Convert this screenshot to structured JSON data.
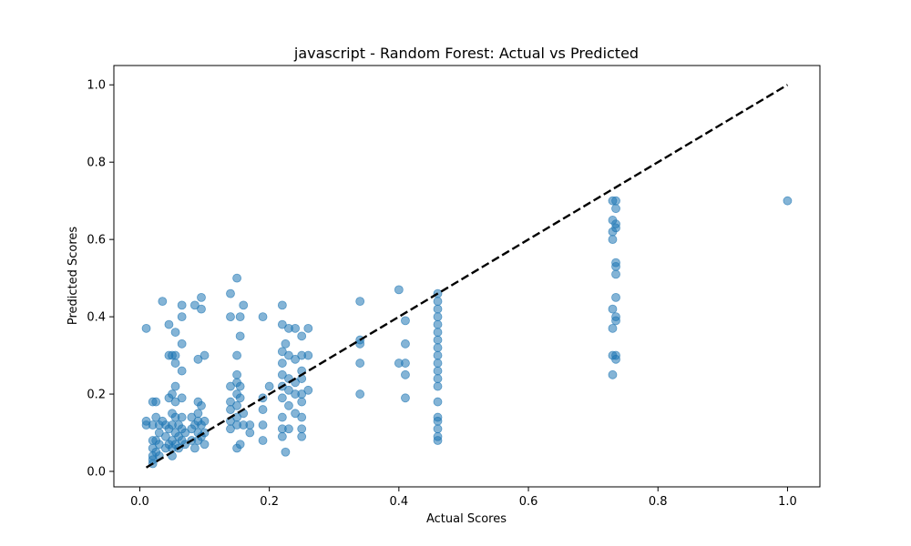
{
  "chart_data": {
    "type": "scatter",
    "title": "javascript - Random Forest: Actual vs Predicted",
    "xlabel": "Actual Scores",
    "ylabel": "Predicted Scores",
    "xlim": [
      -0.04,
      1.05
    ],
    "ylim": [
      -0.04,
      1.05
    ],
    "x_ticks": [
      0.0,
      0.2,
      0.4,
      0.6,
      0.8,
      1.0
    ],
    "y_ticks": [
      0.0,
      0.2,
      0.4,
      0.6,
      0.8,
      1.0
    ],
    "x_tick_labels": [
      "0.0",
      "0.2",
      "0.4",
      "0.6",
      "0.8",
      "1.0"
    ],
    "y_tick_labels": [
      "0.0",
      "0.2",
      "0.4",
      "0.6",
      "0.8",
      "1.0"
    ],
    "grid": false,
    "point_color": "#1f77b4",
    "point_alpha": 0.55,
    "reference_line": {
      "from": [
        0.01,
        0.01
      ],
      "to": [
        1.0,
        1.0
      ],
      "color": "#000000",
      "style": "dashed"
    },
    "series": [
      {
        "points": [
          [
            0.01,
            0.37
          ],
          [
            0.01,
            0.12
          ],
          [
            0.01,
            0.13
          ],
          [
            0.02,
            0.18
          ],
          [
            0.02,
            0.12
          ],
          [
            0.02,
            0.08
          ],
          [
            0.02,
            0.06
          ],
          [
            0.02,
            0.04
          ],
          [
            0.02,
            0.03
          ],
          [
            0.02,
            0.02
          ],
          [
            0.025,
            0.18
          ],
          [
            0.025,
            0.14
          ],
          [
            0.025,
            0.08
          ],
          [
            0.025,
            0.05
          ],
          [
            0.03,
            0.12
          ],
          [
            0.03,
            0.1
          ],
          [
            0.03,
            0.07
          ],
          [
            0.03,
            0.04
          ],
          [
            0.035,
            0.44
          ],
          [
            0.035,
            0.13
          ],
          [
            0.04,
            0.12
          ],
          [
            0.04,
            0.09
          ],
          [
            0.04,
            0.06
          ],
          [
            0.045,
            0.38
          ],
          [
            0.045,
            0.3
          ],
          [
            0.045,
            0.19
          ],
          [
            0.045,
            0.11
          ],
          [
            0.045,
            0.07
          ],
          [
            0.05,
            0.3
          ],
          [
            0.05,
            0.2
          ],
          [
            0.05,
            0.15
          ],
          [
            0.05,
            0.12
          ],
          [
            0.05,
            0.08
          ],
          [
            0.05,
            0.06
          ],
          [
            0.05,
            0.04
          ],
          [
            0.055,
            0.36
          ],
          [
            0.055,
            0.3
          ],
          [
            0.055,
            0.28
          ],
          [
            0.055,
            0.22
          ],
          [
            0.055,
            0.18
          ],
          [
            0.055,
            0.14
          ],
          [
            0.055,
            0.1
          ],
          [
            0.055,
            0.07
          ],
          [
            0.06,
            0.12
          ],
          [
            0.06,
            0.09
          ],
          [
            0.06,
            0.06
          ],
          [
            0.065,
            0.43
          ],
          [
            0.065,
            0.4
          ],
          [
            0.065,
            0.33
          ],
          [
            0.065,
            0.26
          ],
          [
            0.065,
            0.19
          ],
          [
            0.065,
            0.14
          ],
          [
            0.065,
            0.11
          ],
          [
            0.065,
            0.08
          ],
          [
            0.07,
            0.1
          ],
          [
            0.07,
            0.07
          ],
          [
            0.08,
            0.14
          ],
          [
            0.08,
            0.11
          ],
          [
            0.08,
            0.08
          ],
          [
            0.085,
            0.43
          ],
          [
            0.085,
            0.12
          ],
          [
            0.085,
            0.06
          ],
          [
            0.09,
            0.29
          ],
          [
            0.09,
            0.18
          ],
          [
            0.09,
            0.15
          ],
          [
            0.09,
            0.13
          ],
          [
            0.09,
            0.1
          ],
          [
            0.09,
            0.08
          ],
          [
            0.095,
            0.45
          ],
          [
            0.095,
            0.42
          ],
          [
            0.095,
            0.17
          ],
          [
            0.095,
            0.12
          ],
          [
            0.095,
            0.09
          ],
          [
            0.1,
            0.3
          ],
          [
            0.1,
            0.13
          ],
          [
            0.1,
            0.1
          ],
          [
            0.1,
            0.07
          ],
          [
            0.14,
            0.46
          ],
          [
            0.14,
            0.4
          ],
          [
            0.14,
            0.22
          ],
          [
            0.14,
            0.18
          ],
          [
            0.14,
            0.16
          ],
          [
            0.14,
            0.13
          ],
          [
            0.14,
            0.11
          ],
          [
            0.15,
            0.5
          ],
          [
            0.15,
            0.3
          ],
          [
            0.15,
            0.25
          ],
          [
            0.15,
            0.23
          ],
          [
            0.15,
            0.2
          ],
          [
            0.15,
            0.17
          ],
          [
            0.15,
            0.14
          ],
          [
            0.15,
            0.12
          ],
          [
            0.15,
            0.06
          ],
          [
            0.155,
            0.4
          ],
          [
            0.155,
            0.35
          ],
          [
            0.155,
            0.22
          ],
          [
            0.155,
            0.19
          ],
          [
            0.155,
            0.07
          ],
          [
            0.16,
            0.43
          ],
          [
            0.16,
            0.15
          ],
          [
            0.16,
            0.12
          ],
          [
            0.17,
            0.1
          ],
          [
            0.17,
            0.12
          ],
          [
            0.19,
            0.4
          ],
          [
            0.19,
            0.19
          ],
          [
            0.19,
            0.16
          ],
          [
            0.19,
            0.12
          ],
          [
            0.19,
            0.08
          ],
          [
            0.2,
            0.22
          ],
          [
            0.22,
            0.43
          ],
          [
            0.22,
            0.38
          ],
          [
            0.22,
            0.31
          ],
          [
            0.22,
            0.28
          ],
          [
            0.22,
            0.25
          ],
          [
            0.22,
            0.22
          ],
          [
            0.22,
            0.19
          ],
          [
            0.22,
            0.14
          ],
          [
            0.22,
            0.11
          ],
          [
            0.22,
            0.09
          ],
          [
            0.225,
            0.33
          ],
          [
            0.225,
            0.05
          ],
          [
            0.23,
            0.37
          ],
          [
            0.23,
            0.3
          ],
          [
            0.23,
            0.24
          ],
          [
            0.23,
            0.21
          ],
          [
            0.23,
            0.17
          ],
          [
            0.23,
            0.11
          ],
          [
            0.24,
            0.37
          ],
          [
            0.24,
            0.29
          ],
          [
            0.24,
            0.23
          ],
          [
            0.24,
            0.2
          ],
          [
            0.24,
            0.15
          ],
          [
            0.25,
            0.35
          ],
          [
            0.25,
            0.3
          ],
          [
            0.25,
            0.26
          ],
          [
            0.25,
            0.24
          ],
          [
            0.25,
            0.2
          ],
          [
            0.25,
            0.18
          ],
          [
            0.25,
            0.14
          ],
          [
            0.25,
            0.11
          ],
          [
            0.25,
            0.09
          ],
          [
            0.26,
            0.37
          ],
          [
            0.26,
            0.3
          ],
          [
            0.26,
            0.21
          ],
          [
            0.34,
            0.44
          ],
          [
            0.34,
            0.34
          ],
          [
            0.34,
            0.33
          ],
          [
            0.34,
            0.28
          ],
          [
            0.34,
            0.2
          ],
          [
            0.4,
            0.47
          ],
          [
            0.4,
            0.28
          ],
          [
            0.41,
            0.39
          ],
          [
            0.41,
            0.33
          ],
          [
            0.41,
            0.25
          ],
          [
            0.41,
            0.19
          ],
          [
            0.41,
            0.28
          ],
          [
            0.46,
            0.46
          ],
          [
            0.46,
            0.44
          ],
          [
            0.46,
            0.42
          ],
          [
            0.46,
            0.4
          ],
          [
            0.46,
            0.38
          ],
          [
            0.46,
            0.36
          ],
          [
            0.46,
            0.34
          ],
          [
            0.46,
            0.32
          ],
          [
            0.46,
            0.3
          ],
          [
            0.46,
            0.28
          ],
          [
            0.46,
            0.26
          ],
          [
            0.46,
            0.24
          ],
          [
            0.46,
            0.22
          ],
          [
            0.46,
            0.18
          ],
          [
            0.46,
            0.14
          ],
          [
            0.46,
            0.13
          ],
          [
            0.46,
            0.11
          ],
          [
            0.46,
            0.09
          ],
          [
            0.46,
            0.08
          ],
          [
            0.73,
            0.7
          ],
          [
            0.73,
            0.65
          ],
          [
            0.73,
            0.62
          ],
          [
            0.73,
            0.6
          ],
          [
            0.73,
            0.42
          ],
          [
            0.73,
            0.37
          ],
          [
            0.73,
            0.3
          ],
          [
            0.73,
            0.25
          ],
          [
            0.735,
            0.7
          ],
          [
            0.735,
            0.68
          ],
          [
            0.735,
            0.64
          ],
          [
            0.735,
            0.63
          ],
          [
            0.735,
            0.54
          ],
          [
            0.735,
            0.53
          ],
          [
            0.735,
            0.51
          ],
          [
            0.735,
            0.45
          ],
          [
            0.735,
            0.4
          ],
          [
            0.735,
            0.39
          ],
          [
            0.735,
            0.3
          ],
          [
            0.735,
            0.29
          ],
          [
            1.0,
            0.7
          ]
        ]
      }
    ]
  }
}
